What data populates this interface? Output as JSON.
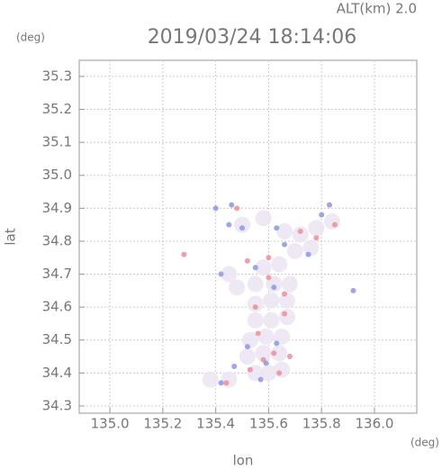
{
  "chart_data": {
    "type": "scatter",
    "title": "2019/03/24 18:14:06",
    "subtitle": "ALT(km) 2.0",
    "x_label": "lon",
    "y_label": "lat",
    "x_unit": "(deg)",
    "y_unit": "(deg)",
    "xlim": [
      134.884,
      136.16
    ],
    "ylim": [
      34.278,
      35.349
    ],
    "xticks": [
      {
        "value": 135.0,
        "label": "135.0"
      },
      135.2,
      135.4,
      135.6,
      135.8,
      {
        "value": 136.0,
        "label": "136.0"
      }
    ],
    "yticks": [
      34.3,
      34.4,
      34.5,
      34.6,
      34.7,
      34.8,
      34.9,
      {
        "value": 35.0,
        "label": "35.0"
      },
      35.1,
      35.2,
      35.3
    ],
    "grid": true,
    "series": [
      {
        "color": "#ebe6f3",
        "x": [
          135.55,
          135.6,
          135.65,
          135.52,
          135.58,
          135.64,
          135.53,
          135.59,
          135.65,
          135.55,
          135.61,
          135.67,
          135.55,
          135.61,
          135.67,
          135.48,
          135.55,
          135.62,
          135.68,
          135.45,
          135.58,
          135.64,
          135.5,
          135.58,
          135.66,
          135.72,
          135.78,
          135.84,
          135.7,
          135.76,
          135.45,
          135.38
        ],
        "y": [
          34.4,
          34.4,
          34.41,
          34.45,
          34.46,
          34.46,
          34.5,
          34.51,
          34.51,
          34.56,
          34.56,
          34.57,
          34.61,
          34.62,
          34.62,
          34.66,
          34.67,
          34.67,
          34.67,
          34.7,
          34.72,
          34.73,
          34.85,
          34.87,
          34.83,
          34.82,
          34.84,
          34.86,
          34.77,
          34.78,
          34.38,
          34.38
        ]
      },
      {
        "color": "#f08c98",
        "x": [
          135.66,
          135.6,
          135.52,
          135.72,
          135.78,
          135.48,
          135.62,
          135.58,
          135.64,
          135.56,
          135.66,
          135.44,
          135.28,
          135.53,
          135.68,
          135.85,
          135.6,
          135.55
        ],
        "y": [
          34.64,
          34.69,
          34.74,
          34.83,
          34.81,
          34.9,
          34.46,
          34.44,
          34.4,
          34.52,
          34.58,
          34.37,
          34.76,
          34.41,
          34.45,
          34.85,
          34.75,
          34.6
        ]
      },
      {
        "color": "#8c96e6",
        "x": [
          135.42,
          135.47,
          135.52,
          135.63,
          135.59,
          135.55,
          135.42,
          135.4,
          135.46,
          135.63,
          135.8,
          135.83,
          135.75,
          135.66,
          135.92,
          135.5,
          135.45,
          135.62,
          135.57
        ],
        "y": [
          34.37,
          34.42,
          34.48,
          34.49,
          34.43,
          34.72,
          34.7,
          34.9,
          34.91,
          34.84,
          34.88,
          34.91,
          34.76,
          34.79,
          34.65,
          34.84,
          34.85,
          34.66,
          34.38
        ]
      }
    ]
  }
}
